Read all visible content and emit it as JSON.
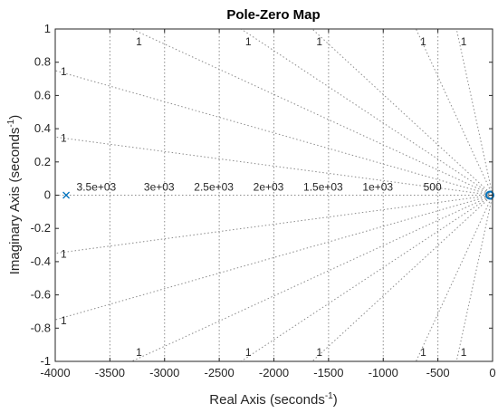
{
  "chart_data": {
    "type": "scatter",
    "title": "Pole-Zero Map",
    "xlabel": {
      "text": "Real Axis (seconds",
      "sup": "-1",
      "close": ")"
    },
    "ylabel": {
      "text": "Imaginary Axis (seconds",
      "sup": "-1",
      "close": ")"
    },
    "xlim": [
      -4000,
      0
    ],
    "ylim": [
      -1,
      1
    ],
    "x_ticks": [
      -4000,
      -3500,
      -3000,
      -2500,
      -2000,
      -1500,
      -1000,
      -500,
      0
    ],
    "x_tick_labels": [
      "-4000",
      "-3500",
      "-3000",
      "-2500",
      "-2000",
      "-1500",
      "-1000",
      "-500",
      "0"
    ],
    "y_ticks": [
      1,
      0.8,
      0.6,
      0.4,
      0.2,
      0,
      -0.2,
      -0.4,
      -0.6,
      -0.8,
      -1
    ],
    "y_tick_labels": [
      "1",
      "0.8",
      "0.6",
      "0.4",
      "0.2",
      "0",
      "-0.2",
      "-0.4",
      "-0.6",
      "-0.8",
      "-1"
    ],
    "grid": true,
    "poles": [
      {
        "x": -3900,
        "y": 0
      }
    ],
    "zeros": [
      {
        "x": 0,
        "y": 0
      }
    ],
    "marker_color": "#0072BD",
    "grid_color": "#8c8c8c",
    "frequency_lines": [
      {
        "x": -3500,
        "label": "3.5e+03"
      },
      {
        "x": -3000,
        "label": "3e+03"
      },
      {
        "x": -2500,
        "label": "2.5e+03"
      },
      {
        "x": -2000,
        "label": "2e+03"
      },
      {
        "x": -1500,
        "label": "1.5e+03"
      },
      {
        "x": -1000,
        "label": "1e+03"
      },
      {
        "x": -500,
        "label": "500"
      }
    ],
    "damping_rays": [
      {
        "x": -3300,
        "y": 1,
        "label": "1",
        "label_at": "top"
      },
      {
        "x": -2300,
        "y": 1,
        "label": "1",
        "label_at": "top"
      },
      {
        "x": -1650,
        "y": 1,
        "label": "1",
        "label_at": "top"
      },
      {
        "x": -700,
        "y": 1,
        "label": "1",
        "label_at": "top"
      },
      {
        "x": -330,
        "y": 1,
        "label": "1",
        "label_at": "top"
      },
      {
        "x": -4000,
        "y": 0.75,
        "label": "1",
        "label_at": "left"
      },
      {
        "x": -4000,
        "y": 0.35,
        "label": "1",
        "label_at": "left"
      },
      {
        "x": -4000,
        "y": -0.35,
        "label": "1",
        "label_at": "left"
      },
      {
        "x": -4000,
        "y": -0.75,
        "label": "1",
        "label_at": "left"
      },
      {
        "x": -3300,
        "y": -1,
        "label": "1",
        "label_at": "bottom"
      },
      {
        "x": -2300,
        "y": -1,
        "label": "1",
        "label_at": "bottom"
      },
      {
        "x": -1650,
        "y": -1,
        "label": "1",
        "label_at": "bottom"
      },
      {
        "x": -700,
        "y": -1,
        "label": "1",
        "label_at": "bottom"
      },
      {
        "x": -330,
        "y": -1,
        "label": "1",
        "label_at": "bottom"
      }
    ]
  }
}
